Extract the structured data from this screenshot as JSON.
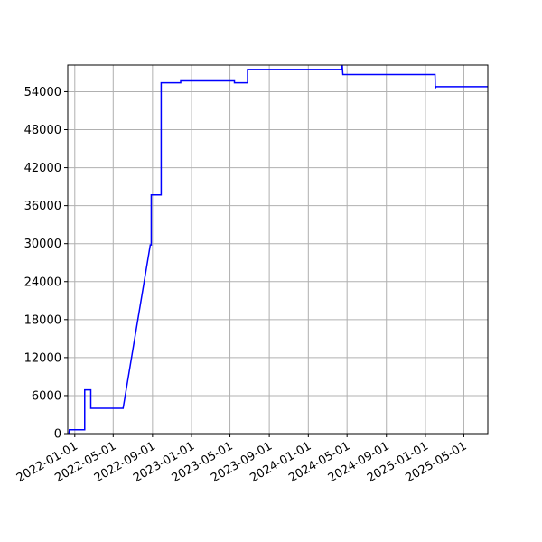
{
  "chart_data": {
    "type": "line",
    "title": "",
    "xlabel": "",
    "ylabel": "",
    "x_scale": "date",
    "xlim": [
      "2021-12-10",
      "2025-07-15"
    ],
    "ylim": [
      0,
      58200
    ],
    "grid": true,
    "colors": {
      "line": "#0000ff",
      "grid": "#b0b0b0",
      "axis": "#000000"
    },
    "x_ticks": [
      "2022-01-01",
      "2022-05-01",
      "2022-09-01",
      "2023-01-01",
      "2023-05-01",
      "2023-09-01",
      "2024-01-01",
      "2024-05-01",
      "2024-09-01",
      "2025-01-01",
      "2025-05-01"
    ],
    "y_ticks": [
      0,
      6000,
      12000,
      18000,
      24000,
      30000,
      36000,
      42000,
      48000,
      54000
    ],
    "y_tick_labels": [
      "0",
      "6000",
      "12000",
      "18000",
      "24000",
      "30000",
      "36000",
      "42000",
      "48000",
      "54000"
    ],
    "series": [
      {
        "points": [
          [
            "2021-12-14",
            0
          ],
          [
            "2021-12-15",
            600
          ],
          [
            "2022-02-01",
            600
          ],
          [
            "2022-02-01",
            6900
          ],
          [
            "2022-02-20",
            6900
          ],
          [
            "2022-02-20",
            4000
          ],
          [
            "2022-06-01",
            4000
          ],
          [
            "2022-08-25",
            29800
          ],
          [
            "2022-08-28",
            29800
          ],
          [
            "2022-08-28",
            37700
          ],
          [
            "2022-09-28",
            37700
          ],
          [
            "2022-09-28",
            55400
          ],
          [
            "2022-11-28",
            55400
          ],
          [
            "2022-11-28",
            55700
          ],
          [
            "2023-05-15",
            55700
          ],
          [
            "2023-05-15",
            55400
          ],
          [
            "2023-06-25",
            55400
          ],
          [
            "2023-06-25",
            57500
          ],
          [
            "2024-04-15",
            57500
          ],
          [
            "2024-04-16",
            58200
          ],
          [
            "2024-04-18",
            56700
          ],
          [
            "2025-01-31",
            56700
          ],
          [
            "2025-02-01",
            54600
          ],
          [
            "2025-02-04",
            54800
          ],
          [
            "2025-07-15",
            54800
          ]
        ]
      }
    ]
  }
}
